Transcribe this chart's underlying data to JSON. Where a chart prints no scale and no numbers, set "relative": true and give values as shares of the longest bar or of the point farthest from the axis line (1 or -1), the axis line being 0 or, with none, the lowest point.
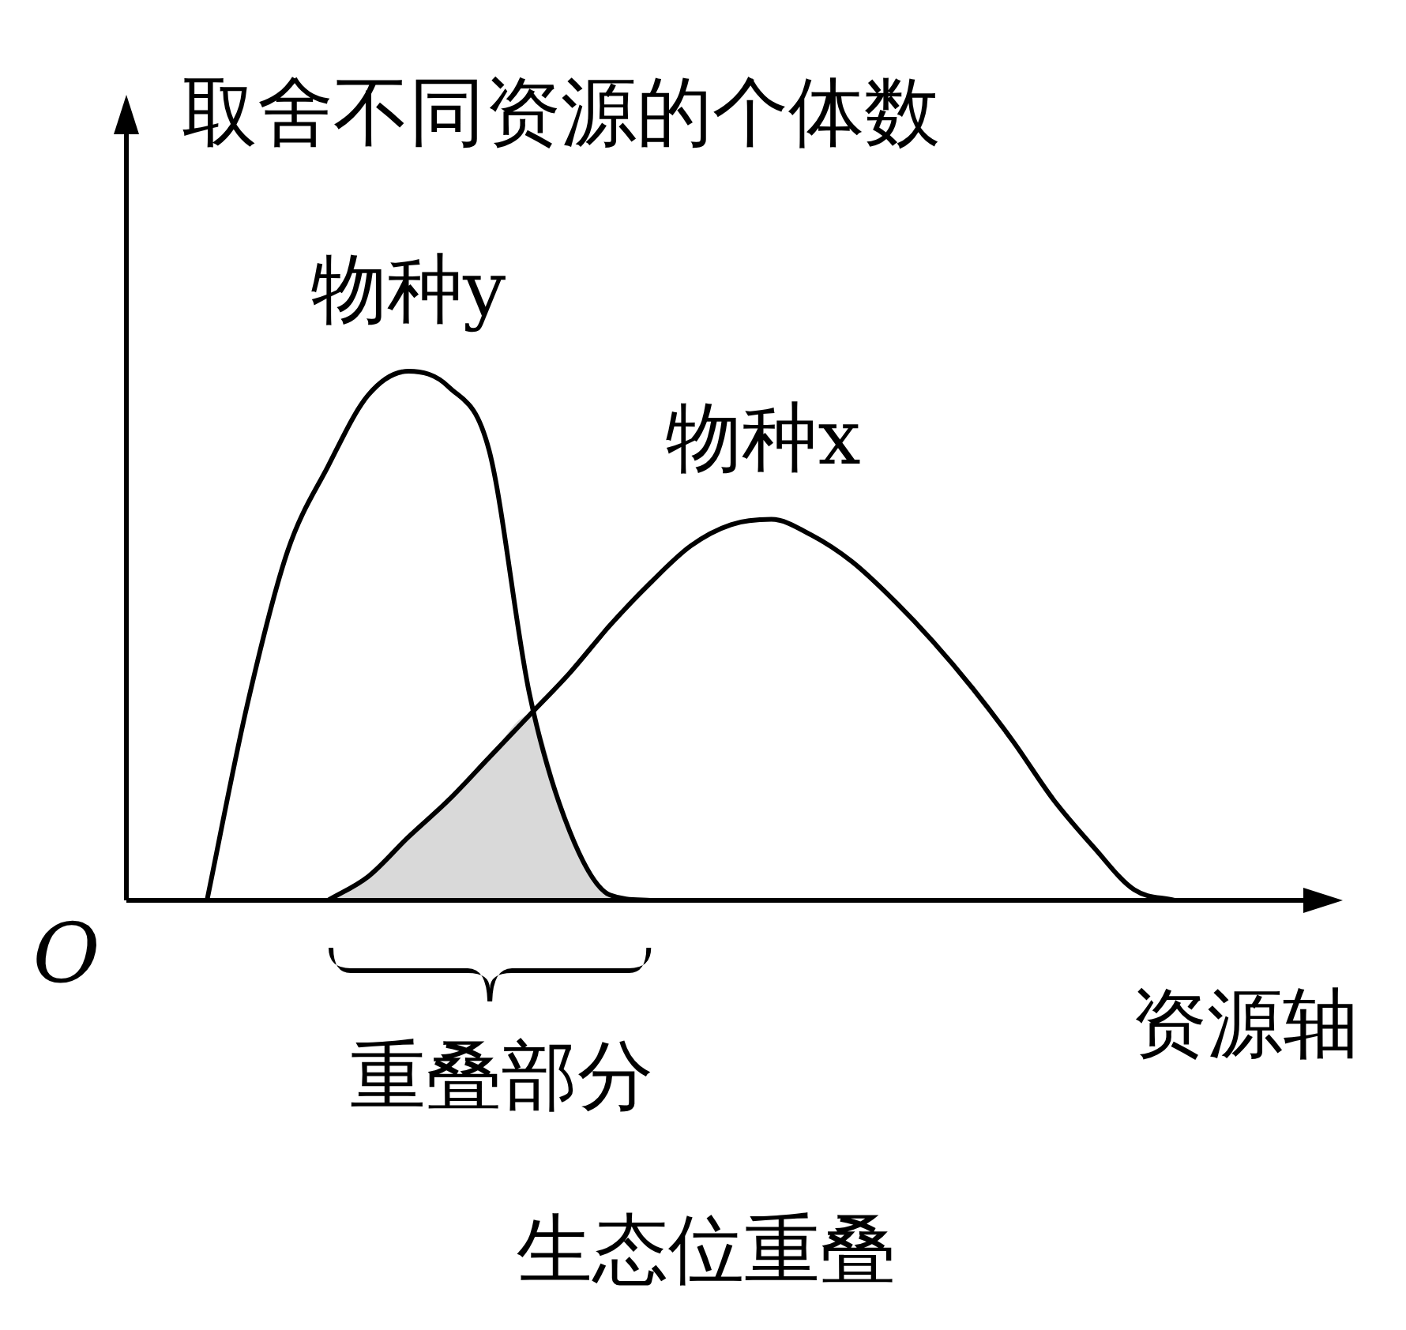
{
  "chart_data": {
    "type": "line",
    "relative": true,
    "xlabel": "资源轴",
    "ylabel": "取舍不同资源的个体数",
    "legend": false,
    "marker": "none",
    "line_style": "solid",
    "categories": [
      null,
      null,
      null,
      null,
      null,
      null,
      null,
      null,
      null,
      null,
      null,
      null,
      null,
      null,
      null,
      null,
      null,
      null,
      null,
      null,
      null,
      null,
      null,
      null,
      null,
      null,
      null,
      null,
      null,
      null
    ],
    "series": [
      {
        "name": "物种y",
        "color": "#000000",
        "values": [
          null,
          null,
          0,
          0.37,
          0.66,
          0.82,
          0.955,
          1,
          0.97,
          0.85,
          0.39,
          0.13,
          0.01,
          0,
          null,
          null,
          null,
          null,
          null,
          null,
          null,
          null,
          null,
          null,
          null,
          null,
          null,
          null,
          null,
          null
        ]
      },
      {
        "name": "物种x",
        "color": "#000000",
        "values": [
          null,
          null,
          null,
          null,
          null,
          0,
          0.045,
          0.12,
          0.19,
          0.27,
          0.35,
          0.43,
          0.52,
          0.6,
          0.67,
          0.71,
          0.72,
          0.69,
          0.64,
          0.57,
          0.49,
          0.4,
          0.3,
          0.19,
          0.1,
          0.02,
          0,
          null,
          null,
          null
        ]
      },
      {
        "type": "area",
        "color": "#d9d9d9",
        "values": [
          null,
          null,
          null,
          null,
          null,
          0,
          0.045,
          0.12,
          0.19,
          0.27,
          0.35,
          0.13,
          0.01,
          0,
          null,
          null,
          null,
          null,
          null,
          null,
          null,
          null,
          null,
          null,
          null,
          null,
          null,
          null,
          null,
          null
        ]
      }
    ],
    "annotations": [
      "O",
      "重叠部分",
      "生态位重叠"
    ]
  }
}
